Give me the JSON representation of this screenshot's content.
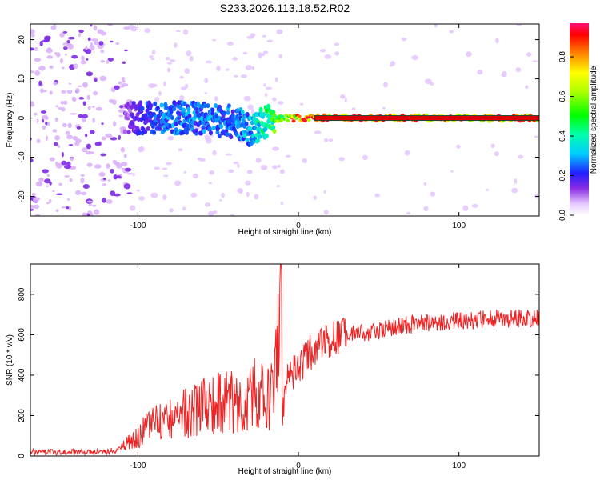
{
  "chart_data": [
    {
      "type": "heatmap",
      "title": "S233.2026.113.18.52.R02",
      "xlabel": "Height of straight line (km)",
      "ylabel": "Frequency (Hz)",
      "xlim": [
        -167,
        150
      ],
      "ylim": [
        -25,
        24
      ],
      "xticks": [
        "-100",
        "0",
        "100"
      ],
      "xtick_values": [
        -100,
        0,
        100
      ],
      "yticks": [
        "-20",
        "-10",
        "0",
        "10",
        "20"
      ],
      "ytick_values": [
        -20,
        -10,
        0,
        10,
        20
      ],
      "colorbar": {
        "label": "Normalized spectral amplitude",
        "range": [
          0,
          0.97
        ],
        "ticks": [
          "0.0",
          "0.2",
          "0.4",
          "0.6",
          "0.8"
        ],
        "tick_values": [
          0.0,
          0.2,
          0.4,
          0.6,
          0.8
        ]
      },
      "description_points": {
        "x": [
          -160,
          -140,
          -120,
          -105,
          -95,
          -80,
          -60,
          -40,
          -30,
          -20,
          -10,
          0,
          10,
          30,
          60,
          100,
          150
        ],
        "center_frequency": [
          0,
          0,
          0,
          0,
          0,
          0,
          0,
          -1,
          -3,
          -1,
          0,
          0,
          0,
          0,
          0,
          0,
          0
        ],
        "amplitude": [
          0.1,
          0.1,
          0.1,
          0.15,
          0.25,
          0.3,
          0.3,
          0.3,
          0.35,
          0.5,
          0.7,
          0.9,
          0.95,
          0.95,
          0.95,
          0.95,
          0.95
        ]
      }
    },
    {
      "type": "line",
      "title": "",
      "xlabel": "Height of straight line (km)",
      "ylabel": "SNR (10 * v/v)",
      "xlim": [
        -167,
        150
      ],
      "ylim": [
        0,
        950
      ],
      "xticks": [
        "-100",
        "0",
        "100"
      ],
      "xtick_values": [
        -100,
        0,
        100
      ],
      "yticks": [
        "0",
        "200",
        "400",
        "600",
        "800"
      ],
      "ytick_values": [
        0,
        200,
        400,
        600,
        800
      ],
      "series": [
        {
          "name": "SNR",
          "color": "#ee2222",
          "x": [
            -167,
            -150,
            -130,
            -115,
            -110,
            -100,
            -95,
            -90,
            -80,
            -70,
            -60,
            -50,
            -40,
            -35,
            -30,
            -25,
            -20,
            -15,
            -12,
            -11,
            -10,
            -8,
            -5,
            0,
            5,
            10,
            20,
            30,
            40,
            50,
            60,
            70,
            80,
            90,
            100,
            110,
            120,
            130,
            140,
            150
          ],
          "values": [
            20,
            20,
            20,
            25,
            40,
            70,
            100,
            120,
            140,
            160,
            180,
            200,
            200,
            210,
            230,
            230,
            210,
            230,
            500,
            950,
            200,
            350,
            400,
            420,
            500,
            520,
            580,
            600,
            610,
            620,
            640,
            650,
            660,
            660,
            670,
            670,
            680,
            680,
            680,
            680
          ]
        }
      ]
    }
  ]
}
